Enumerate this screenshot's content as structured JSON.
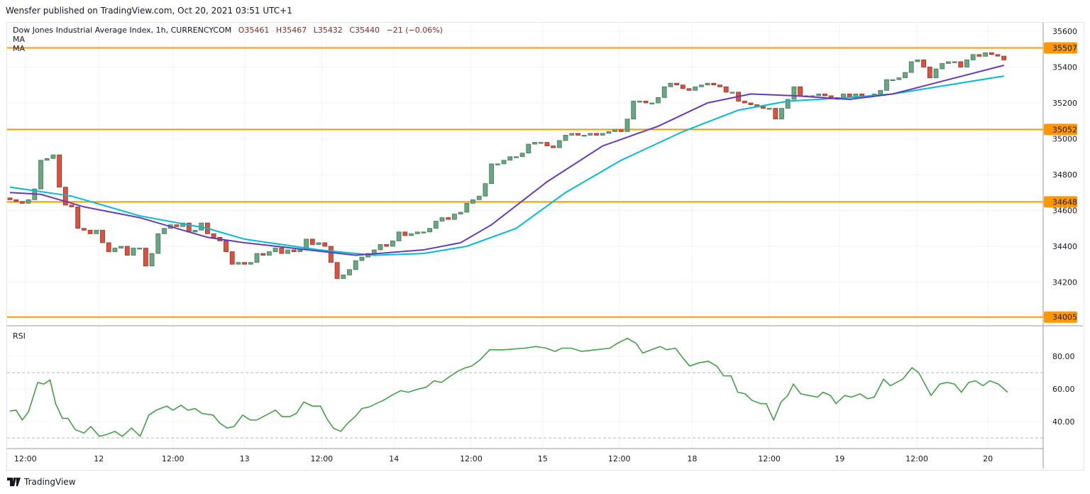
{
  "publisher_line": "Wensfer published on TradingView.com, Oct 20, 2021 03:51 UTC+1",
  "legend": {
    "symbol": "Dow Jones Industrial Average Index, 1h, CURRENCYCOM",
    "open": "O35461",
    "high": "H35467",
    "low": "L35432",
    "close": "C35440",
    "change": "−21 (−0.06%)",
    "ma1": "MA",
    "ma2": "MA"
  },
  "rsi_label": "RSI",
  "footer_brand": "TradingView",
  "colors": {
    "up": "#6ba583",
    "down": "#d75442",
    "ma_fast": "#673ab7",
    "ma_slow": "#00bcd4",
    "level": "#ff9800",
    "rsi": "#43a047"
  },
  "chart_data": [
    {
      "type": "candlestick",
      "title": "Dow Jones Industrial Average Index, 1h",
      "ylim": [
        33940,
        35680
      ],
      "y_ticks": [
        34200,
        34400,
        34600,
        34800,
        35000,
        35200,
        35400,
        35600
      ],
      "levels": [
        35507,
        35052,
        34648,
        34005
      ],
      "x_ticks": [
        {
          "i": 2.5,
          "label": "12:00"
        },
        {
          "i": 14.4,
          "label": "12"
        },
        {
          "i": 26.4,
          "label": "12:00"
        },
        {
          "i": 38,
          "label": "13"
        },
        {
          "i": 50.5,
          "label": "12:00"
        },
        {
          "i": 62.2,
          "label": "14"
        },
        {
          "i": 74.7,
          "label": "12:00"
        },
        {
          "i": 86.3,
          "label": "15"
        },
        {
          "i": 98.7,
          "label": "12:00"
        },
        {
          "i": 110.5,
          "label": "18"
        },
        {
          "i": 123,
          "label": "12:00"
        },
        {
          "i": 134.4,
          "label": "19"
        },
        {
          "i": 146.9,
          "label": "12:00"
        },
        {
          "i": 158.4,
          "label": "20"
        }
      ],
      "first_open": 34670,
      "closes": [
        34660,
        34650,
        34640,
        34660,
        34720,
        34880,
        34890,
        34910,
        34730,
        34630,
        34620,
        34500,
        34490,
        34470,
        34490,
        34420,
        34370,
        34390,
        34400,
        34350,
        34390,
        34390,
        34290,
        34360,
        34470,
        34500,
        34520,
        34510,
        34530,
        34480,
        34490,
        34530,
        34470,
        34450,
        34430,
        34370,
        34300,
        34310,
        34300,
        34310,
        34360,
        34350,
        34370,
        34390,
        34360,
        34380,
        34370,
        34380,
        34440,
        34410,
        34420,
        34400,
        34310,
        34220,
        34240,
        34270,
        34320,
        34340,
        34360,
        34380,
        34410,
        34400,
        34430,
        34480,
        34460,
        34470,
        34480,
        34480,
        34500,
        34540,
        34560,
        34550,
        34580,
        34590,
        34640,
        34660,
        34680,
        34750,
        34860,
        34860,
        34880,
        34900,
        34900,
        34920,
        34970,
        34980,
        34980,
        34960,
        34950,
        34990,
        35020,
        35030,
        35020,
        35020,
        35030,
        35020,
        35030,
        35040,
        35050,
        35040,
        35110,
        35210,
        35210,
        35200,
        35200,
        35230,
        35290,
        35310,
        35300,
        35280,
        35270,
        35290,
        35300,
        35310,
        35300,
        35290,
        35260,
        35260,
        35210,
        35200,
        35190,
        35180,
        35170,
        35170,
        35110,
        35170,
        35220,
        35290,
        35240,
        35240,
        35240,
        35250,
        35240,
        35230,
        35220,
        35250,
        35230,
        35250,
        35240,
        35240,
        35250,
        35270,
        35330,
        35330,
        35340,
        35370,
        35430,
        35440,
        35400,
        35340,
        35390,
        35420,
        35430,
        35430,
        35400,
        35440,
        35470,
        35460,
        35480,
        35470,
        35461,
        35440
      ],
      "ma_fast": [
        [
          0,
          34700
        ],
        [
          5,
          34690
        ],
        [
          12,
          34620
        ],
        [
          21,
          34560
        ],
        [
          32,
          34450
        ],
        [
          38,
          34420
        ],
        [
          56,
          34350
        ],
        [
          67,
          34380
        ],
        [
          73,
          34420
        ],
        [
          78,
          34520
        ],
        [
          87,
          34760
        ],
        [
          96,
          34960
        ],
        [
          105,
          35070
        ],
        [
          113,
          35200
        ],
        [
          120,
          35250
        ],
        [
          127,
          35240
        ],
        [
          136,
          35220
        ],
        [
          143,
          35250
        ],
        [
          152,
          35330
        ],
        [
          161,
          35410
        ]
      ],
      "ma_slow": [
        [
          0,
          34730
        ],
        [
          10,
          34680
        ],
        [
          21,
          34570
        ],
        [
          32,
          34500
        ],
        [
          38,
          34440
        ],
        [
          50,
          34380
        ],
        [
          59,
          34350
        ],
        [
          67,
          34360
        ],
        [
          74,
          34400
        ],
        [
          82,
          34500
        ],
        [
          90,
          34700
        ],
        [
          99,
          34880
        ],
        [
          109,
          35040
        ],
        [
          118,
          35160
        ],
        [
          126,
          35210
        ],
        [
          136,
          35230
        ],
        [
          143,
          35250
        ],
        [
          152,
          35300
        ],
        [
          161,
          35350
        ]
      ]
    },
    {
      "type": "line",
      "title": "RSI",
      "ylim": [
        25,
        95
      ],
      "y_ticks": [
        40,
        60,
        80
      ],
      "bands": [
        30,
        70
      ],
      "values": [
        [
          0,
          46.5
        ],
        [
          1,
          47
        ],
        [
          2,
          41
        ],
        [
          3,
          46
        ],
        [
          4.5,
          64
        ],
        [
          5.5,
          63
        ],
        [
          6.5,
          65.5
        ],
        [
          7.4,
          51
        ],
        [
          8.5,
          42
        ],
        [
          9.4,
          42
        ],
        [
          10.6,
          35
        ],
        [
          12,
          33
        ],
        [
          13.1,
          37
        ],
        [
          14.5,
          31
        ],
        [
          15.6,
          32
        ],
        [
          17,
          34
        ],
        [
          18.2,
          31
        ],
        [
          19.7,
          36
        ],
        [
          21.1,
          31
        ],
        [
          22.5,
          44
        ],
        [
          23.7,
          47
        ],
        [
          25.4,
          49.5
        ],
        [
          26.4,
          47
        ],
        [
          27.7,
          50
        ],
        [
          28.8,
          47
        ],
        [
          30,
          48
        ],
        [
          31.1,
          45
        ],
        [
          32.9,
          44
        ],
        [
          34,
          39
        ],
        [
          35.2,
          36
        ],
        [
          36.3,
          37
        ],
        [
          37.7,
          44
        ],
        [
          38.9,
          41
        ],
        [
          40,
          41
        ],
        [
          41.5,
          44
        ],
        [
          43,
          47
        ],
        [
          44.1,
          43
        ],
        [
          45.3,
          43
        ],
        [
          46.4,
          45
        ],
        [
          47.6,
          52
        ],
        [
          49,
          49.5
        ],
        [
          50.3,
          49.5
        ],
        [
          51.3,
          42
        ],
        [
          52.4,
          36
        ],
        [
          53.6,
          34
        ],
        [
          54.7,
          39
        ],
        [
          55.9,
          43
        ],
        [
          57,
          48
        ],
        [
          58.2,
          49
        ],
        [
          59.3,
          51
        ],
        [
          60.5,
          53
        ],
        [
          61.8,
          56
        ],
        [
          63.3,
          59
        ],
        [
          64.5,
          58
        ],
        [
          66.2,
          60
        ],
        [
          67.4,
          61
        ],
        [
          68.7,
          65
        ],
        [
          69.9,
          64
        ],
        [
          71,
          67
        ],
        [
          72.6,
          71
        ],
        [
          73.8,
          73
        ],
        [
          74.8,
          74
        ],
        [
          76.2,
          78
        ],
        [
          77.7,
          84
        ],
        [
          80,
          84
        ],
        [
          83.4,
          85
        ],
        [
          85.2,
          86
        ],
        [
          86.9,
          85
        ],
        [
          88.3,
          83
        ],
        [
          89.4,
          85
        ],
        [
          90.9,
          85
        ],
        [
          92.6,
          83
        ],
        [
          94.9,
          84
        ],
        [
          97.2,
          85
        ],
        [
          98.4,
          88
        ],
        [
          100,
          91
        ],
        [
          101.4,
          88
        ],
        [
          102.5,
          82
        ],
        [
          103.9,
          84
        ],
        [
          105.3,
          86
        ],
        [
          106.4,
          84
        ],
        [
          107.8,
          85
        ],
        [
          109,
          79
        ],
        [
          110.1,
          74
        ],
        [
          111.6,
          76
        ],
        [
          113.1,
          77
        ],
        [
          114.5,
          74
        ],
        [
          115.6,
          68
        ],
        [
          116.8,
          68
        ],
        [
          117.9,
          58
        ],
        [
          119.1,
          57
        ],
        [
          120.2,
          53
        ],
        [
          121.6,
          51
        ],
        [
          122.5,
          51
        ],
        [
          123.7,
          41
        ],
        [
          124.9,
          52
        ],
        [
          126,
          56
        ],
        [
          126.9,
          63
        ],
        [
          128.1,
          57
        ],
        [
          129.4,
          56
        ],
        [
          130.8,
          55
        ],
        [
          131.7,
          58
        ],
        [
          132.9,
          56
        ],
        [
          133.8,
          51
        ],
        [
          135.2,
          56
        ],
        [
          136.3,
          55
        ],
        [
          137.7,
          57
        ],
        [
          138.9,
          54
        ],
        [
          140,
          55
        ],
        [
          141.5,
          66
        ],
        [
          142.6,
          62
        ],
        [
          144.6,
          66
        ],
        [
          146.1,
          73
        ],
        [
          147.2,
          70
        ],
        [
          149.2,
          56
        ],
        [
          150.6,
          63
        ],
        [
          151.8,
          64
        ],
        [
          153,
          63
        ],
        [
          154.1,
          58
        ],
        [
          155.3,
          64
        ],
        [
          156.4,
          65
        ],
        [
          157.6,
          62
        ],
        [
          158.7,
          65
        ],
        [
          160.1,
          63
        ],
        [
          161.6,
          58
        ]
      ]
    }
  ]
}
